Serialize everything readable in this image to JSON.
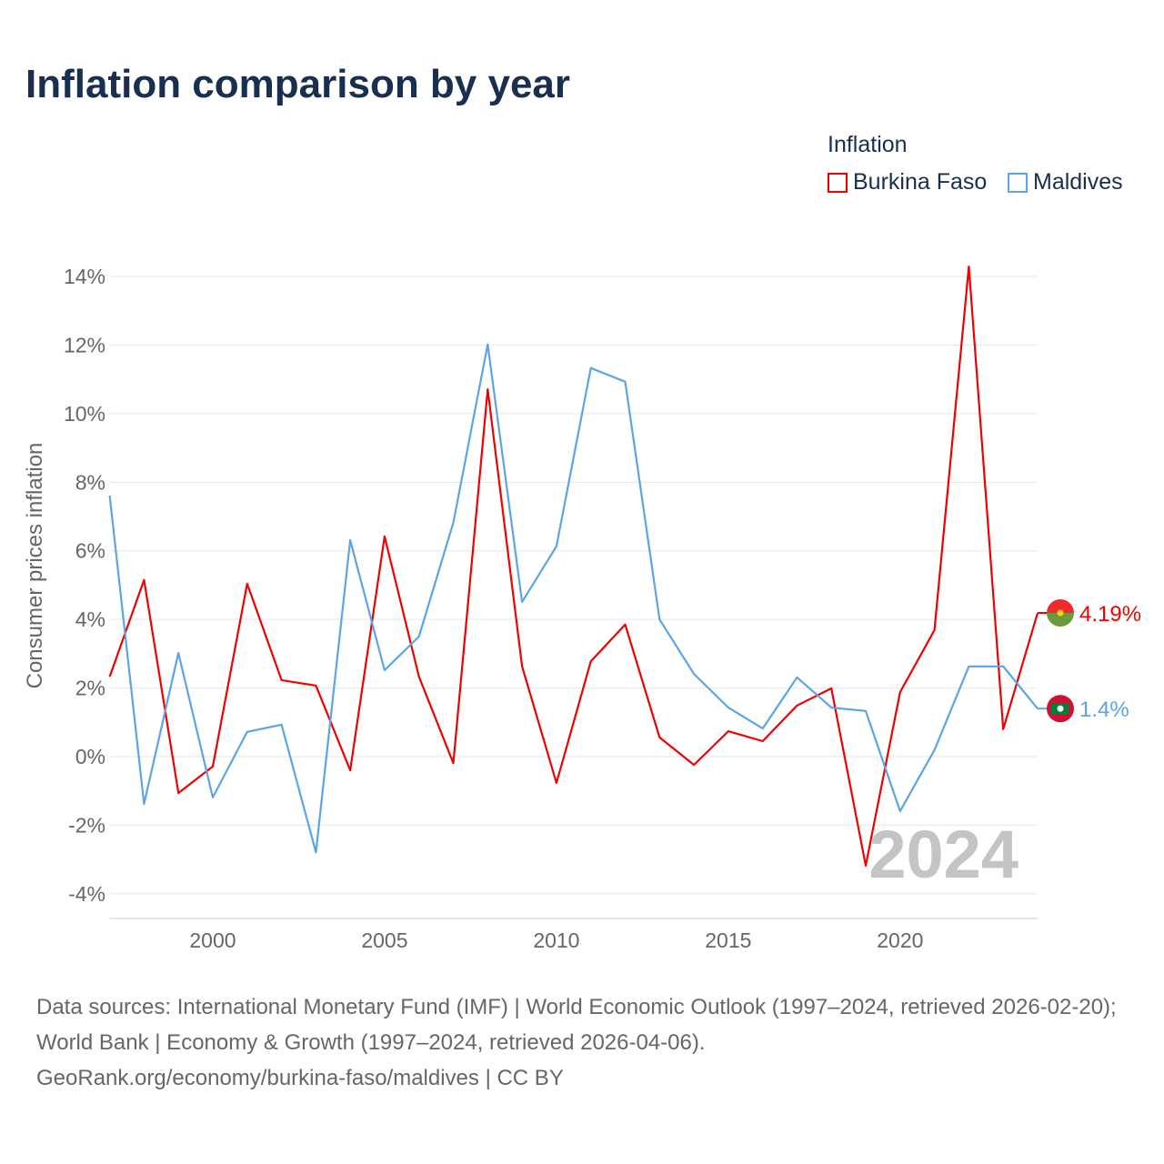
{
  "chart_data": {
    "type": "line",
    "title": "Inflation comparison by year",
    "legend_title": "Inflation",
    "legend_placement": "top-right",
    "ylabel": "Consumer prices inflation",
    "xlabel": "",
    "xlim": [
      1997,
      2024
    ],
    "ylim": [
      -4.7,
      14.5
    ],
    "x_ticks": [
      2000,
      2005,
      2010,
      2015,
      2020
    ],
    "x_tick_labels": [
      "2000",
      "2005",
      "2010",
      "2015",
      "2020"
    ],
    "y_ticks": [
      -4,
      -2,
      0,
      2,
      4,
      6,
      8,
      10,
      12,
      14
    ],
    "y_tick_labels": [
      "-4%",
      "-2%",
      "0%",
      "2%",
      "4%",
      "6%",
      "8%",
      "10%",
      "12%",
      "14%"
    ],
    "grid": true,
    "year_watermark": "2024",
    "x": [
      1997,
      1998,
      1999,
      2000,
      2001,
      2002,
      2003,
      2004,
      2005,
      2006,
      2007,
      2008,
      2009,
      2010,
      2011,
      2012,
      2013,
      2014,
      2015,
      2016,
      2017,
      2018,
      2019,
      2020,
      2021,
      2022,
      2023,
      2024
    ],
    "series": [
      {
        "name": "Burkina Faso",
        "color": "#f00000",
        "end_label": "4.19%",
        "values": [
          2.33,
          5.15,
          -1.06,
          -0.29,
          5.04,
          2.23,
          2.07,
          -0.4,
          6.42,
          2.33,
          -0.19,
          10.71,
          2.63,
          -0.77,
          2.78,
          3.85,
          0.56,
          -0.24,
          0.74,
          0.45,
          1.49,
          1.99,
          -3.18,
          1.88,
          3.69,
          14.29,
          0.8,
          4.19
        ]
      },
      {
        "name": "Maldives",
        "color": "#5ba4e6",
        "end_label": "1.4%",
        "values": [
          7.61,
          -1.38,
          3.02,
          -1.19,
          0.72,
          0.93,
          -2.79,
          6.31,
          2.52,
          3.5,
          6.82,
          12.02,
          4.51,
          6.13,
          11.33,
          10.93,
          4.0,
          2.41,
          1.43,
          0.82,
          2.31,
          1.43,
          1.33,
          -1.59,
          0.19,
          2.63,
          2.63,
          1.4
        ]
      }
    ]
  },
  "source": {
    "line1": "Data sources: International Monetary Fund (IMF) | World Economic Outlook (1997–2024, retrieved 2026-02-20); World Bank | Economy & Growth (1997–2024, retrieved 2026-04-06).",
    "line2": "GeoRank.org/economy/burkina-faso/maldives | CC BY"
  }
}
